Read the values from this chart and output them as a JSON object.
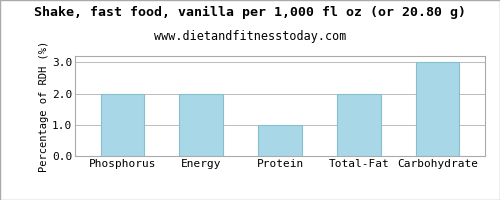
{
  "title": "Shake, fast food, vanilla per 1,000 fl oz (or 20.80 g)",
  "subtitle": "www.dietandfitnesstoday.com",
  "ylabel": "Percentage of RDH (%)",
  "categories": [
    "Phosphorus",
    "Energy",
    "Protein",
    "Total-Fat",
    "Carbohydrate"
  ],
  "values": [
    2.0,
    2.0,
    1.0,
    2.0,
    3.0
  ],
  "bar_color": "#a8d8e8",
  "bar_edge_color": "#88bfcf",
  "ylim": [
    0,
    3.2
  ],
  "yticks": [
    0.0,
    1.0,
    2.0,
    3.0
  ],
  "grid_color": "#bbbbbb",
  "bg_color": "#ffffff",
  "plot_bg_color": "#ffffff",
  "outer_border_color": "#aaaaaa",
  "title_fontsize": 9.5,
  "subtitle_fontsize": 8.5,
  "ylabel_fontsize": 7.5,
  "tick_fontsize": 8,
  "font_family": "monospace"
}
